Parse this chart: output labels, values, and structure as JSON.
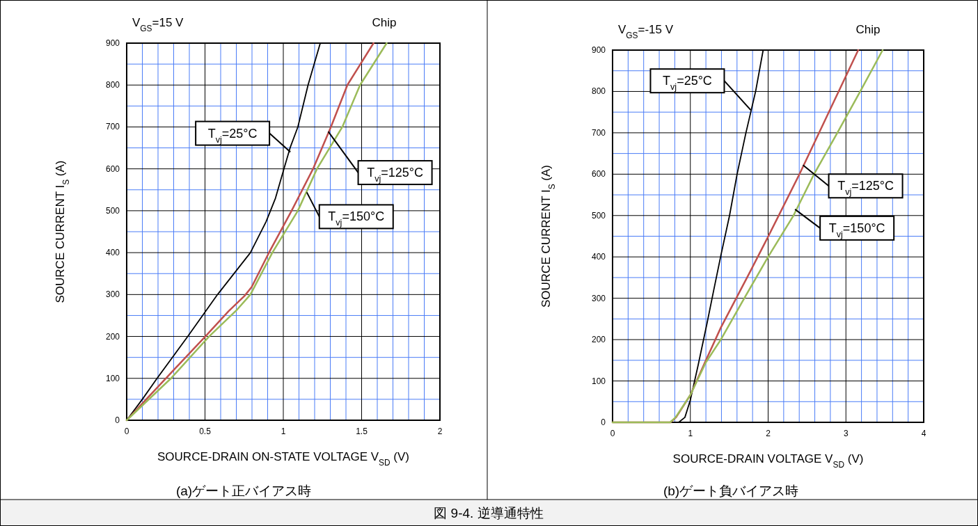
{
  "chart_data": [
    {
      "type": "line",
      "title": "(a)ゲート正バイアス時",
      "xlabel": "SOURCE-DRAIN ON-STATE VOLTAGE   V$_{SD}$ (V)",
      "ylabel": "SOURCE CURRENT    I$_{S}$    (A)",
      "annotations": [
        "V$_{GS}$=15 V",
        "Chip",
        {
          "text": "T$_{vj}$=25°C",
          "x": 1.045,
          "y": 640
        },
        {
          "text": "T$_{vj}$=125°C",
          "x": 1.287,
          "y": 689
        },
        {
          "text": "T$_{vj}$=150°C",
          "x": 1.15,
          "y": 544
        }
      ],
      "xlim": [
        0,
        2
      ],
      "ylim": [
        0,
        900
      ],
      "xticks": [
        0,
        {
          "value": 0.1,
          "label": null
        },
        {
          "value": 0.2,
          "label": null
        },
        {
          "value": 0.3,
          "label": null
        },
        {
          "value": 0.4,
          "label": null
        },
        0.5,
        {
          "value": 0.6,
          "label": null
        },
        {
          "value": 0.7,
          "label": null
        },
        {
          "value": 0.8,
          "label": null
        },
        {
          "value": 0.9,
          "label": null
        },
        1,
        {
          "value": 1.1,
          "label": null
        },
        {
          "value": 1.2,
          "label": null
        },
        {
          "value": 1.3,
          "label": null
        },
        {
          "value": 1.4,
          "label": null
        },
        1.5,
        {
          "value": 1.6,
          "label": null
        },
        {
          "value": 1.7,
          "label": null
        },
        {
          "value": 1.8,
          "label": null
        },
        {
          "value": 1.9,
          "label": null
        },
        2
      ],
      "yticks": [
        0,
        {
          "value": 50,
          "label": null
        },
        100,
        {
          "value": 150,
          "label": null
        },
        200,
        {
          "value": 250,
          "label": null
        },
        300,
        {
          "value": 350,
          "label": null
        },
        400,
        {
          "value": 450,
          "label": null
        },
        500,
        {
          "value": 550,
          "label": null
        },
        600,
        {
          "value": 650,
          "label": null
        },
        700,
        {
          "value": 750,
          "label": null
        },
        800,
        {
          "value": 850,
          "label": null
        },
        900
      ],
      "grid": true,
      "marker": "none",
      "line_style": "solid",
      "series": [
        {
          "color": "#000000",
          "x": [
            0,
            0.1,
            0.194,
            0.39,
            0.58,
            0.79,
            0.89,
            0.95,
            1.004,
            1.045,
            1.093,
            1.158,
            1.236
          ],
          "values": [
            0,
            50,
            100,
            200,
            300,
            400,
            474,
            530,
            600,
            652,
            700,
            800,
            900
          ]
        },
        {
          "color": "#c0504d",
          "x": [
            0,
            0.1,
            0.25,
            0.502,
            0.65,
            0.753,
            0.798,
            0.907,
            1.053,
            1.19,
            1.304,
            1.409,
            1.576
          ],
          "values": [
            0,
            40,
            100,
            200,
            260,
            297,
            318,
            399,
            500,
            600,
            700,
            800,
            900
          ]
        },
        {
          "color": "#9bbb59",
          "x": [
            0,
            0.283,
            0.526,
            0.7,
            0.79,
            0.93,
            1.093,
            1.215,
            1.377,
            1.49,
            1.66
          ],
          "values": [
            0,
            100,
            200,
            262,
            300,
            400,
            500,
            600,
            700,
            800,
            900
          ]
        }
      ]
    },
    {
      "type": "line",
      "title": "(b)ゲート負バイアス時",
      "xlabel": "SOURCE-DRAIN VOLTAGE    V$_{SD}$    (V)",
      "ylabel": "SOURCE CURRENT    I$_{S}$    (A)",
      "annotations": [
        "V$_{GS}$=-15 V",
        "Chip",
        "図 9-4. 逆導通特性",
        {
          "text": "T$_{vj}$=25°C",
          "x": 1.776,
          "y": 755
        },
        {
          "text": "T$_{vj}$=125°C",
          "x": 2.448,
          "y": 622
        },
        {
          "text": "T$_{vj}$=150°C",
          "x": 2.346,
          "y": 515
        }
      ],
      "xlim": [
        0,
        4
      ],
      "ylim": [
        0,
        900
      ],
      "xticks": [
        0,
        {
          "value": 0.2,
          "label": null
        },
        {
          "value": 0.4,
          "label": null
        },
        {
          "value": 0.6,
          "label": null
        },
        {
          "value": 0.8,
          "label": null
        },
        1,
        {
          "value": 1.2,
          "label": null
        },
        {
          "value": 1.4,
          "label": null
        },
        {
          "value": 1.6,
          "label": null
        },
        {
          "value": 1.8,
          "label": null
        },
        2,
        {
          "value": 2.2,
          "label": null
        },
        {
          "value": 2.4,
          "label": null
        },
        {
          "value": 2.6,
          "label": null
        },
        {
          "value": 2.8,
          "label": null
        },
        3,
        {
          "value": 3.2,
          "label": null
        },
        {
          "value": 3.4,
          "label": null
        },
        {
          "value": 3.6,
          "label": null
        },
        {
          "value": 3.8,
          "label": null
        },
        4
      ],
      "yticks": [
        0,
        {
          "value": 50,
          "label": null
        },
        100,
        {
          "value": 150,
          "label": null
        },
        200,
        {
          "value": 250,
          "label": null
        },
        300,
        {
          "value": 350,
          "label": null
        },
        400,
        {
          "value": 450,
          "label": null
        },
        500,
        {
          "value": 550,
          "label": null
        },
        600,
        {
          "value": 650,
          "label": null
        },
        700,
        {
          "value": 750,
          "label": null
        },
        800,
        {
          "value": 850,
          "label": null
        },
        900
      ],
      "grid": true,
      "marker": "none",
      "line_style": "solid",
      "series": [
        {
          "color": "#000000",
          "x": [
            0,
            0.85,
            0.93,
            1.0,
            1.1,
            1.216,
            1.3,
            1.392,
            1.504,
            1.6,
            1.712,
            1.84,
            1.936
          ],
          "values": [
            0,
            0,
            12,
            54,
            138,
            241,
            319,
            403,
            500,
            599,
            698,
            801,
            900
          ]
        },
        {
          "color": "#c0504d",
          "x": [
            0,
            0.745,
            0.816,
            1.0,
            1.2,
            1.392,
            1.776,
            2.0,
            2.4,
            2.992,
            3.158
          ],
          "values": [
            0,
            0,
            12,
            66,
            150,
            229,
            367,
            449,
            599,
            834,
            900
          ]
        },
        {
          "color": "#9bbb59",
          "x": [
            0,
            0.74,
            0.81,
            1.0,
            1.2,
            1.392,
            1.7,
            2.0,
            2.326,
            2.59,
            2.89,
            3.184,
            3.472
          ],
          "values": [
            0,
            0,
            12,
            66,
            145,
            200,
            302,
            400,
            500,
            600,
            700,
            800,
            900
          ]
        }
      ]
    }
  ]
}
